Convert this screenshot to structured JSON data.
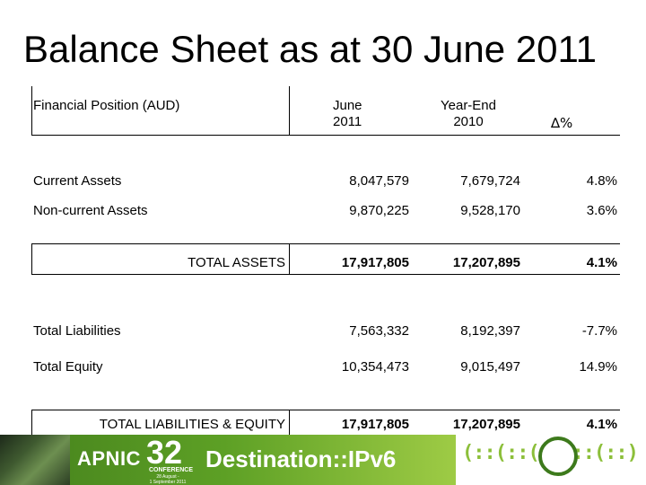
{
  "title": "Balance Sheet as at 30 June 2011",
  "header": {
    "position_label": "Financial Position (AUD)",
    "col1": [
      "June",
      "2011"
    ],
    "col2": [
      "Year-End",
      "2010"
    ],
    "col3": "∆%"
  },
  "rows": [
    {
      "label": "Current Assets",
      "june2011": "8,047,579",
      "ye2010": "7,679,724",
      "delta": "4.8%"
    },
    {
      "label": "Non-current Assets",
      "june2011": "9,870,225",
      "ye2010": "9,528,170",
      "delta": "3.6%"
    },
    {
      "label": "TOTAL ASSETS",
      "june2011": "17,917,805",
      "ye2010": "17,207,895",
      "delta": "4.1%"
    },
    {
      "label": "Total Liabilities",
      "june2011": "7,563,332",
      "ye2010": "8,192,397",
      "delta": "-7.7%"
    },
    {
      "label": "Total Equity",
      "june2011": "10,354,473",
      "ye2010": "9,015,497",
      "delta": "14.9%"
    },
    {
      "label": "TOTAL LIABILITIES & EQUITY",
      "june2011": "17,917,805",
      "ye2010": "17,207,895",
      "delta": "4.1%"
    }
  ],
  "footer": {
    "org": "APNIC",
    "number": "32",
    "conference": "CONFERENCE",
    "dates": [
      "28 August -",
      "1 September 2011"
    ],
    "slogan": "Destination::IPv6",
    "hex_text": "(::(::(::(::(::)"
  },
  "colors": {
    "banner_green": "#5da025",
    "hex_green": "#8cbf3a",
    "logo_green": "#3d7a1c"
  }
}
